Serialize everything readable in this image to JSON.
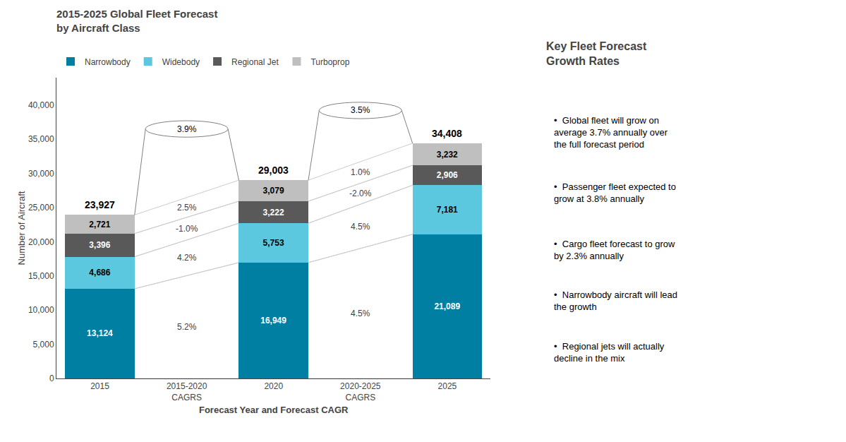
{
  "chart_data": {
    "type": "bar",
    "title": "2015-2025 Global Fleet Forecast\nby Aircraft Class",
    "xlabel": "Forecast Year and Forecast CAGR",
    "ylabel": "Number of Aircraft",
    "categories": [
      "2015",
      "2015-2020\nCAGRS",
      "2020",
      "2020-2025\nCAGRS",
      "2025"
    ],
    "stacked": true,
    "data_labels": true,
    "grid": false,
    "legend": "top left",
    "series": [
      {
        "name": "Narrowbody",
        "color": "#007fa3",
        "values": [
          13124,
          null,
          16949,
          null,
          21089
        ],
        "value_labels": [
          "13,124",
          null,
          "16,949",
          null,
          "21,089"
        ],
        "cagr_labels": [
          null,
          "5.2%",
          null,
          "4.5%",
          null
        ]
      },
      {
        "name": "Widebody",
        "color": "#5bc8e0",
        "values": [
          4686,
          null,
          5753,
          null,
          7181
        ],
        "value_labels": [
          "4,686",
          null,
          "5,753",
          null,
          "7,181"
        ],
        "cagr_labels": [
          null,
          "4.2%",
          null,
          "4.5%",
          null
        ]
      },
      {
        "name": "Regional Jet",
        "color": "#595959",
        "values": [
          3396,
          null,
          3222,
          null,
          2906
        ],
        "value_labels": [
          "3,396",
          null,
          "3,222",
          null,
          "2,906"
        ],
        "cagr_labels": [
          null,
          "-1.0%",
          null,
          "-2.0%",
          null
        ]
      },
      {
        "name": "Turboprop",
        "color": "#bfbfbf",
        "values": [
          2721,
          null,
          3079,
          null,
          3232
        ],
        "value_labels": [
          "2,721",
          null,
          "3,079",
          null,
          "3,232"
        ],
        "cagr_labels": [
          null,
          "2.5%",
          null,
          "1.0%",
          null
        ]
      }
    ],
    "totals": [
      23927,
      null,
      29003,
      null,
      34408
    ],
    "total_labels": [
      "23,927",
      null,
      "29,003",
      null,
      "34,408"
    ],
    "overall_cagr_labels": [
      null,
      "3.9%",
      null,
      "3.5%",
      null
    ],
    "ylim": [
      0,
      44000
    ],
    "yticks": [
      0,
      {
        "value": 5000,
        "label": "5,000"
      },
      {
        "value": 10000,
        "label": "10,000"
      },
      {
        "value": 15000,
        "label": "15,000"
      },
      {
        "value": 20000,
        "label": "20,000"
      },
      {
        "value": 25000,
        "label": "25,000"
      },
      {
        "value": 30000,
        "label": "30,000"
      },
      {
        "value": 35000,
        "label": "35,000"
      },
      {
        "value": 40000,
        "label": "40,000"
      }
    ],
    "panel_title": "Key Fleet Forecast\nGrowth Rates",
    "notes": [
      "•  Global fleet will grow on\naverage 3.7% annually over\nthe full forecast period",
      "•  Passenger fleet expected to\ngrow at 3.8% annually",
      "•  Cargo fleet forecast to grow\nby 2.3% annually",
      "•  Narrowbody aircraft will lead\nthe growth",
      "•  Regional jets will actually\ndecline in the mix"
    ]
  }
}
